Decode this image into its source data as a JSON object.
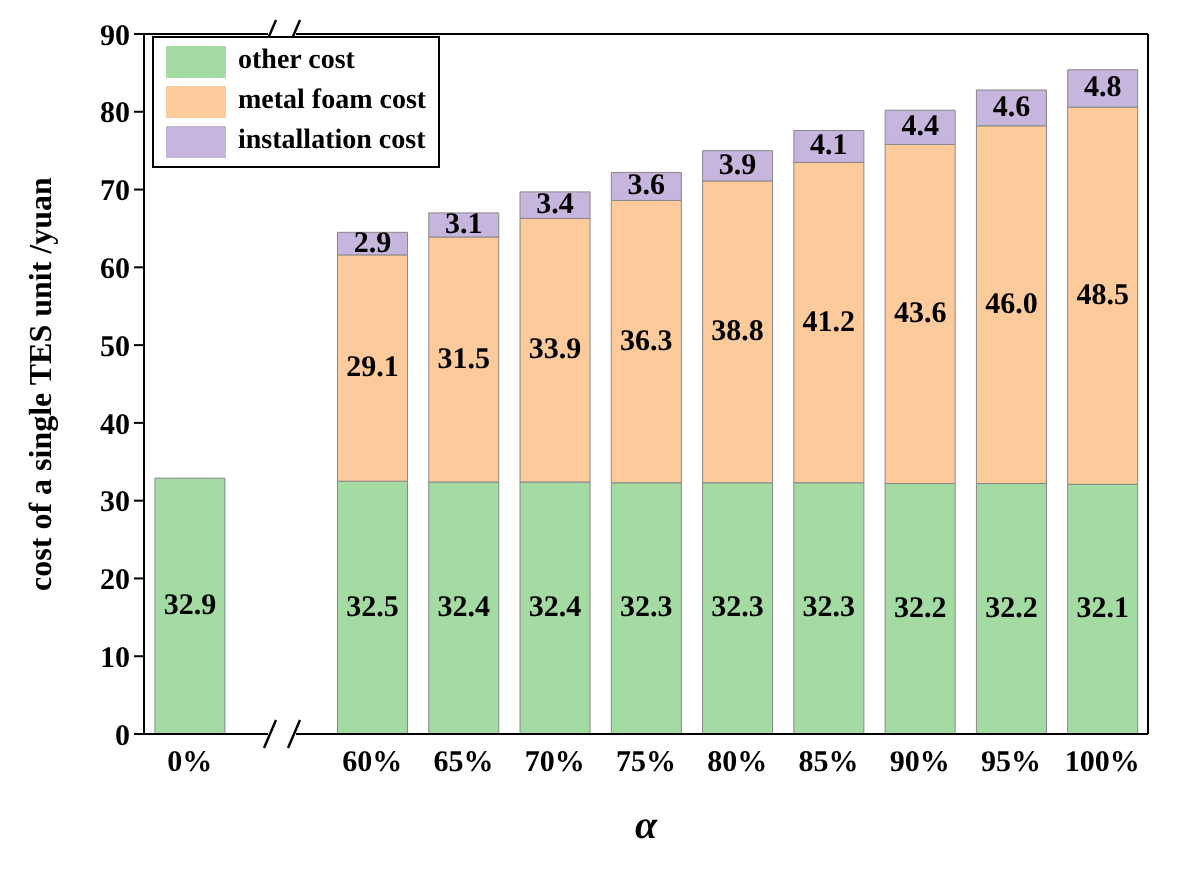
{
  "chart_data": {
    "type": "bar",
    "stacked": true,
    "xlabel": "α",
    "ylabel": "cost of a single TES unit /yuan",
    "categories": [
      "0%",
      "60%",
      "65%",
      "70%",
      "75%",
      "80%",
      "85%",
      "90%",
      "95%",
      "100%"
    ],
    "series": [
      {
        "name": "other cost",
        "color": "#a3dba3",
        "values": [
          32.9,
          32.5,
          32.4,
          32.4,
          32.3,
          32.3,
          32.3,
          32.2,
          32.2,
          32.1
        ],
        "value_labels": [
          "32.9",
          "32.5",
          "32.4",
          "32.4",
          "32.3",
          "32.3",
          "32.3",
          "32.2",
          "32.2",
          "32.1"
        ]
      },
      {
        "name": "metal foam cost",
        "color": "#fdca9b",
        "values": [
          null,
          29.1,
          31.5,
          33.9,
          36.3,
          38.8,
          41.2,
          43.6,
          46.0,
          48.5
        ],
        "value_labels": [
          null,
          "29.1",
          "31.5",
          "33.9",
          "36.3",
          "38.8",
          "41.2",
          "43.6",
          "46.0",
          "48.5"
        ]
      },
      {
        "name": "installation cost",
        "color": "#c6b5dd",
        "values": [
          null,
          2.9,
          3.1,
          3.4,
          3.6,
          3.9,
          4.1,
          4.4,
          4.6,
          4.8
        ],
        "value_labels": [
          null,
          "2.9",
          "3.1",
          "3.4",
          "3.6",
          "3.9",
          "4.1",
          "4.4",
          "4.6",
          "4.8"
        ]
      }
    ],
    "ylim": [
      0,
      90
    ],
    "yticks": [
      0,
      10,
      20,
      30,
      40,
      50,
      60,
      70,
      80,
      90
    ],
    "legend": "top left"
  }
}
